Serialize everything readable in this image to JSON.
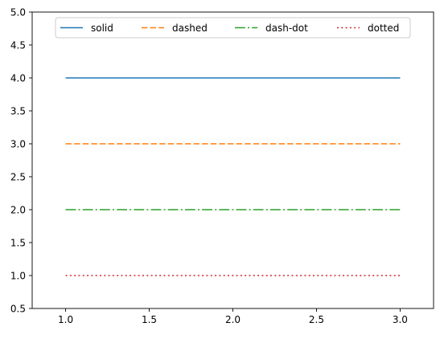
{
  "chart_data": {
    "type": "line",
    "title": "",
    "xlabel": "",
    "ylabel": "",
    "xlim": [
      0.8,
      3.2
    ],
    "ylim": [
      0.5,
      5.0
    ],
    "x_ticks": [
      1.0,
      1.5,
      2.0,
      2.5,
      3.0
    ],
    "x_tick_labels": [
      "1.0",
      "1.5",
      "2.0",
      "2.5",
      "3.0"
    ],
    "y_ticks": [
      0.5,
      1.0,
      1.5,
      2.0,
      2.5,
      3.0,
      3.5,
      4.0,
      4.5,
      5.0
    ],
    "y_tick_labels": [
      "0.5",
      "1.0",
      "1.5",
      "2.0",
      "2.5",
      "3.0",
      "3.5",
      "4.0",
      "4.5",
      "5.0"
    ],
    "grid": false,
    "legend_position": "top-center",
    "series": [
      {
        "name": "solid",
        "x": [
          1,
          2,
          3
        ],
        "y": [
          4,
          4,
          4
        ],
        "color": "#1f77b4",
        "style": "solid"
      },
      {
        "name": "dashed",
        "x": [
          1,
          2,
          3
        ],
        "y": [
          3,
          3,
          3
        ],
        "color": "#ff7f0e",
        "style": "dashed"
      },
      {
        "name": "dash-dot",
        "x": [
          1,
          2,
          3
        ],
        "y": [
          2,
          2,
          2
        ],
        "color": "#2ca02c",
        "style": "dash-dot"
      },
      {
        "name": "dotted",
        "x": [
          1,
          2,
          3
        ],
        "y": [
          1,
          1,
          1
        ],
        "color": "#d62728",
        "style": "dotted"
      }
    ]
  }
}
